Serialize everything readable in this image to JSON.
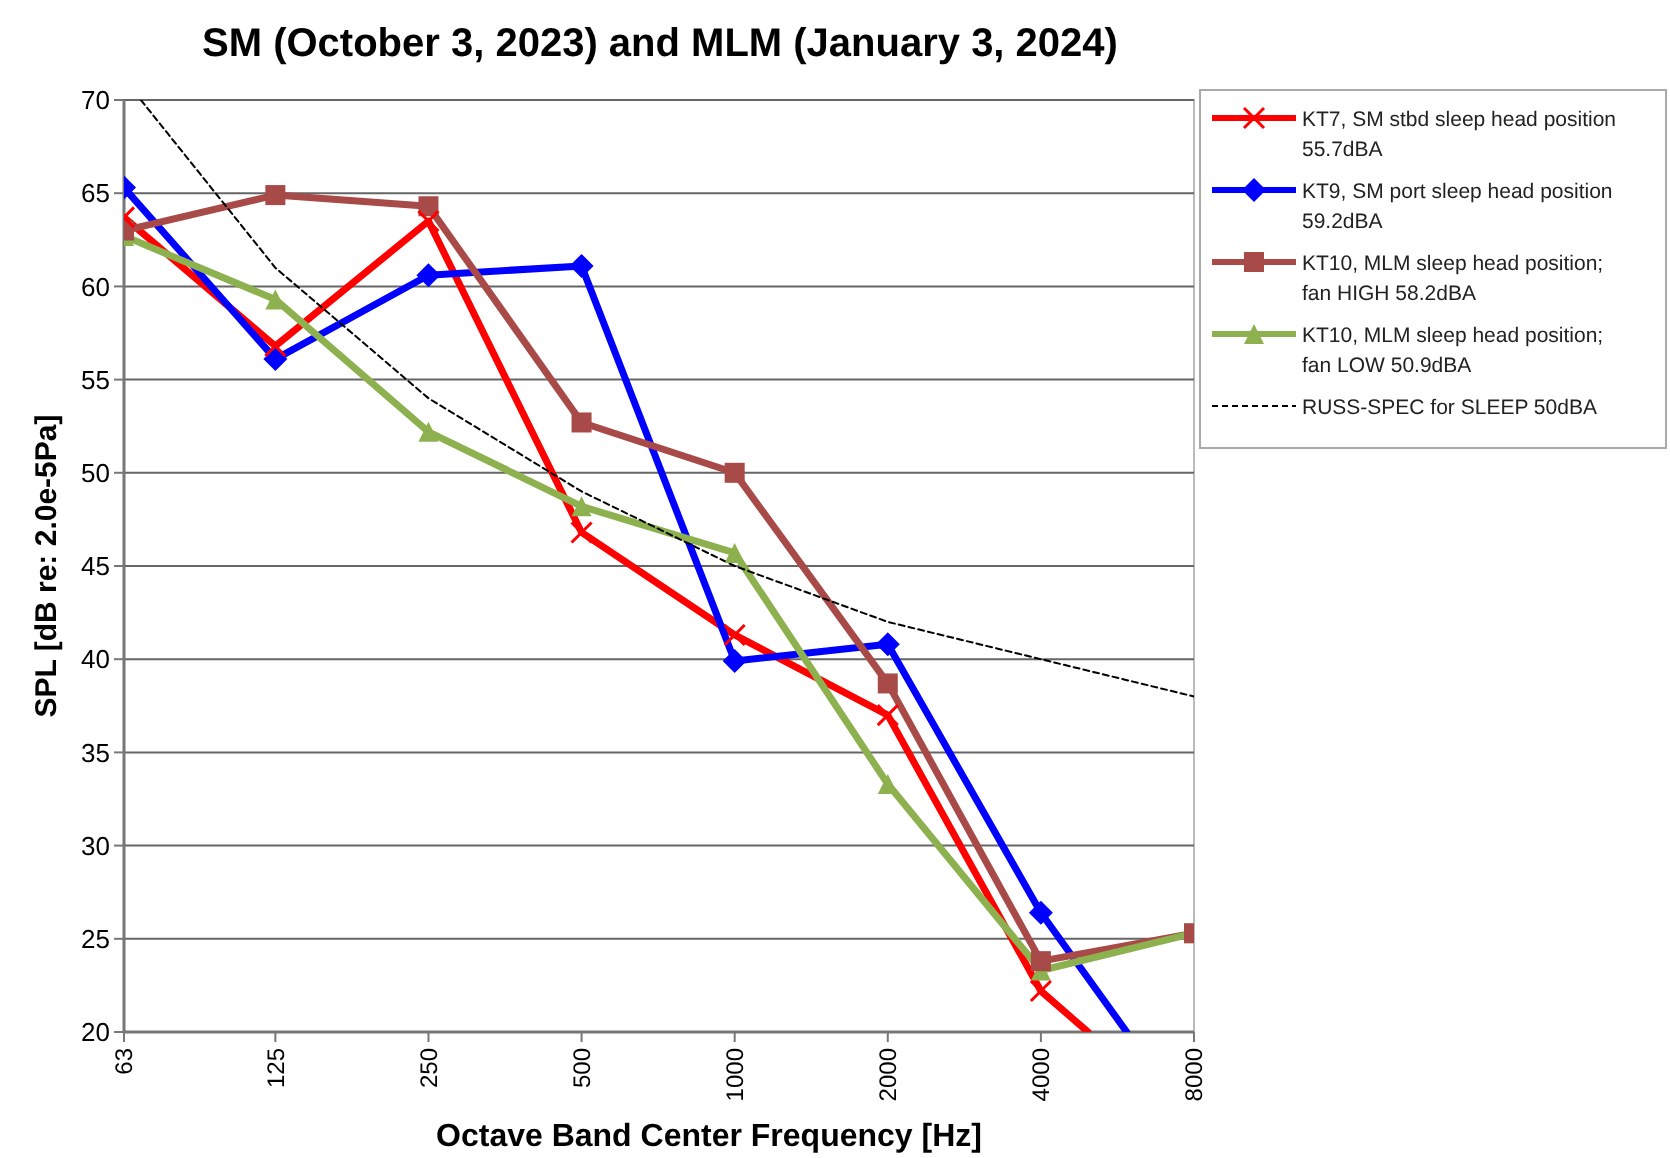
{
  "chart_data": {
    "type": "line",
    "title": "SM (October 3, 2023) and MLM (January 3, 2024)",
    "xlabel": "Octave Band Center Frequency [Hz]",
    "ylabel": "SPL [dB re: 2.0e-5Pa]",
    "log": "x",
    "xlim": [
      63,
      8000
    ],
    "xticks": [
      63,
      125,
      250,
      500,
      1000,
      2000,
      4000,
      8000
    ],
    "ylim": [
      20,
      70
    ],
    "yticks": [
      20,
      25,
      30,
      35,
      40,
      45,
      50,
      55,
      60,
      65,
      70
    ],
    "grid": "y",
    "legend": "right",
    "series": [
      {
        "name": "KT7, SM stbd sleep head position 55.7dBA",
        "color": "#ff0000",
        "marker": "cross",
        "x": [
          63,
          125,
          250,
          500,
          1000,
          2000,
          4000,
          4950
        ],
        "values": [
          63.7,
          56.8,
          63.5,
          46.8,
          41.3,
          37.0,
          22.2,
          20
        ]
      },
      {
        "name": "KT9, SM port sleep head position 59.2dBA",
        "color": "#0000ff",
        "marker": "diamond",
        "x": [
          63,
          125,
          250,
          500,
          1000,
          2000,
          4000,
          5900
        ],
        "values": [
          65.3,
          56.1,
          60.6,
          61.1,
          39.9,
          40.8,
          26.4,
          20
        ]
      },
      {
        "name": "KT10, MLM sleep head position; fan HIGH 58.2dBA",
        "color": "#a84a48",
        "marker": "square",
        "x": [
          63,
          125,
          250,
          500,
          1000,
          2000,
          4000,
          8000
        ],
        "values": [
          63.0,
          64.9,
          64.3,
          52.7,
          50.0,
          38.7,
          23.8,
          25.3
        ]
      },
      {
        "name": "KT10, MLM sleep head position; fan LOW 50.9dBA",
        "color": "#8db14e",
        "marker": "triangle",
        "x": [
          63,
          125,
          250,
          500,
          1000,
          2000,
          4000,
          8000
        ],
        "values": [
          62.7,
          59.3,
          52.2,
          48.2,
          45.7,
          33.3,
          23.3,
          25.3
        ]
      },
      {
        "name": "RUSS-SPEC for SLEEP 50dBA",
        "color": "#000000",
        "marker": "none",
        "line_style": "dashed",
        "x": [
          68,
          125,
          250,
          500,
          1000,
          2000,
          4000,
          8000
        ],
        "values": [
          70,
          61,
          54,
          49,
          45,
          42,
          40,
          38
        ]
      }
    ]
  }
}
